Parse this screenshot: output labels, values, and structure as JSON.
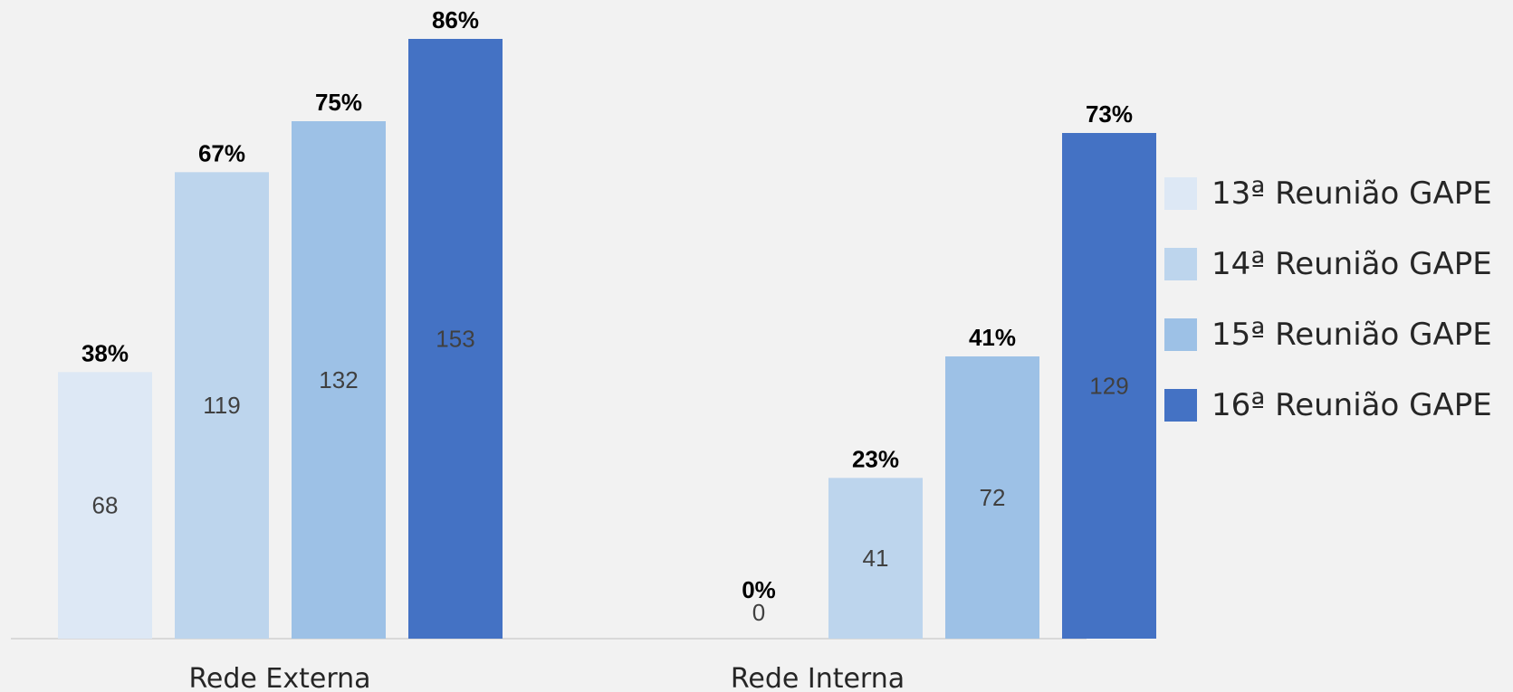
{
  "chart_data": {
    "type": "bar",
    "categories": [
      "Rede Externa",
      "Rede Interna"
    ],
    "series": [
      {
        "name": "13ª Reunião GAPE",
        "values": [
          68,
          0
        ],
        "percent_labels": [
          "38%",
          "0%"
        ],
        "color": "#dde8f5"
      },
      {
        "name": "14ª Reunião GAPE",
        "values": [
          119,
          41
        ],
        "percent_labels": [
          "67%",
          "23%"
        ],
        "color": "#bdd5ed"
      },
      {
        "name": "15ª Reunião GAPE",
        "values": [
          132,
          72
        ],
        "percent_labels": [
          "75%",
          "41%"
        ],
        "color": "#9dc1e6"
      },
      {
        "name": "16ª Reunião GAPE",
        "values": [
          153,
          129
        ],
        "percent_labels": [
          "86%",
          "73%"
        ],
        "color": "#4472c4"
      }
    ],
    "ylim": [
      0,
      153
    ],
    "grid": false,
    "legend": "right",
    "title": "",
    "xlabel": "",
    "ylabel": ""
  }
}
